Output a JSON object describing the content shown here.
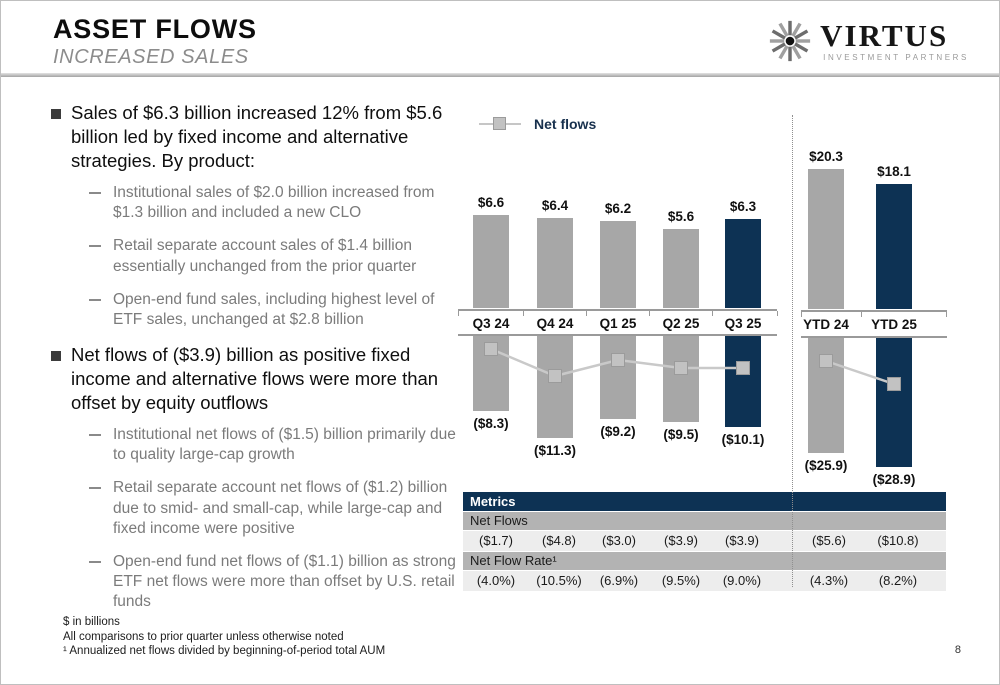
{
  "slide": {
    "title": "ASSET FLOWS",
    "subtitle": "INCREASED SALES",
    "page_number": "8",
    "logo": {
      "name": "VIRTUS",
      "tagline": "INVESTMENT PARTNERS"
    },
    "footnotes": [
      "$ in billions",
      "All comparisons to prior quarter unless otherwise noted",
      "¹ Annualized net flows divided by beginning-of-period total AUM"
    ]
  },
  "bullets": [
    {
      "text": "Sales of $6.3 billion increased 12% from $5.6 billion led by fixed income and alternative strategies. By product:",
      "sub": [
        "Institutional sales of $2.0 billion increased from $1.3 billion and included a new CLO",
        "Retail separate account sales of $1.4 billion essentially unchanged from the prior quarter",
        "Open-end fund sales, including highest level of ETF sales, unchanged at $2.8 billion"
      ]
    },
    {
      "text": "Net flows of ($3.9) billion as positive fixed income and alternative flows were more than offset by equity outflows",
      "sub": [
        "Institutional net flows of ($1.5) billion primarily due to quality large-cap growth",
        "Retail separate account net flows of ($1.2) billion due to smid- and small-cap, while large-cap and fixed income were positive",
        "Open-end fund net flows of ($1.1) billion as strong ETF net flows were more than offset by U.S. retail funds"
      ]
    }
  ],
  "chart_data": {
    "type": "bar+line",
    "legend": [
      "Net flows"
    ],
    "units": "$ billions",
    "colors": {
      "bar_gray": "#a7a7a7",
      "bar_navy": "#0d3254",
      "marker": "#c2c2c2"
    },
    "groups": [
      {
        "name": "quarterly",
        "categories": [
          "Q3 24",
          "Q4 24",
          "Q1 25",
          "Q2 25",
          "Q3 25"
        ],
        "sales": [
          6.6,
          6.4,
          6.2,
          5.6,
          6.3
        ],
        "sales_labels": [
          "$6.6",
          "$6.4",
          "$6.2",
          "$5.6",
          "$6.3"
        ],
        "outflows": [
          -8.3,
          -11.3,
          -9.2,
          -9.5,
          -10.1
        ],
        "outflow_labels": [
          "($8.3)",
          "($11.3)",
          "($9.2)",
          "($9.5)",
          "($10.1)"
        ],
        "net_flows": [
          -1.7,
          -4.8,
          -3.0,
          -3.9,
          -3.9
        ],
        "highlight_index": 4
      },
      {
        "name": "ytd",
        "categories": [
          "YTD 24",
          "YTD 25"
        ],
        "sales": [
          20.3,
          18.1
        ],
        "sales_labels": [
          "$20.3",
          "$18.1"
        ],
        "outflows": [
          -25.9,
          -28.9
        ],
        "outflow_labels": [
          "($25.9)",
          "($28.9)"
        ],
        "net_flows": [
          -5.6,
          -10.8
        ],
        "highlight_index": 1
      }
    ]
  },
  "table": {
    "header": "Metrics",
    "rows": [
      {
        "label": "Net Flows",
        "values": [
          "($1.7)",
          "($4.8)",
          "($3.0)",
          "($3.9)",
          "($3.9)",
          "($5.6)",
          "($10.8)"
        ]
      },
      {
        "label": "Net Flow Rate¹",
        "values": [
          "(4.0%)",
          "(10.5%)",
          "(6.9%)",
          "(9.5%)",
          "(9.0%)",
          "(4.3%)",
          "(8.2%)"
        ]
      }
    ]
  }
}
